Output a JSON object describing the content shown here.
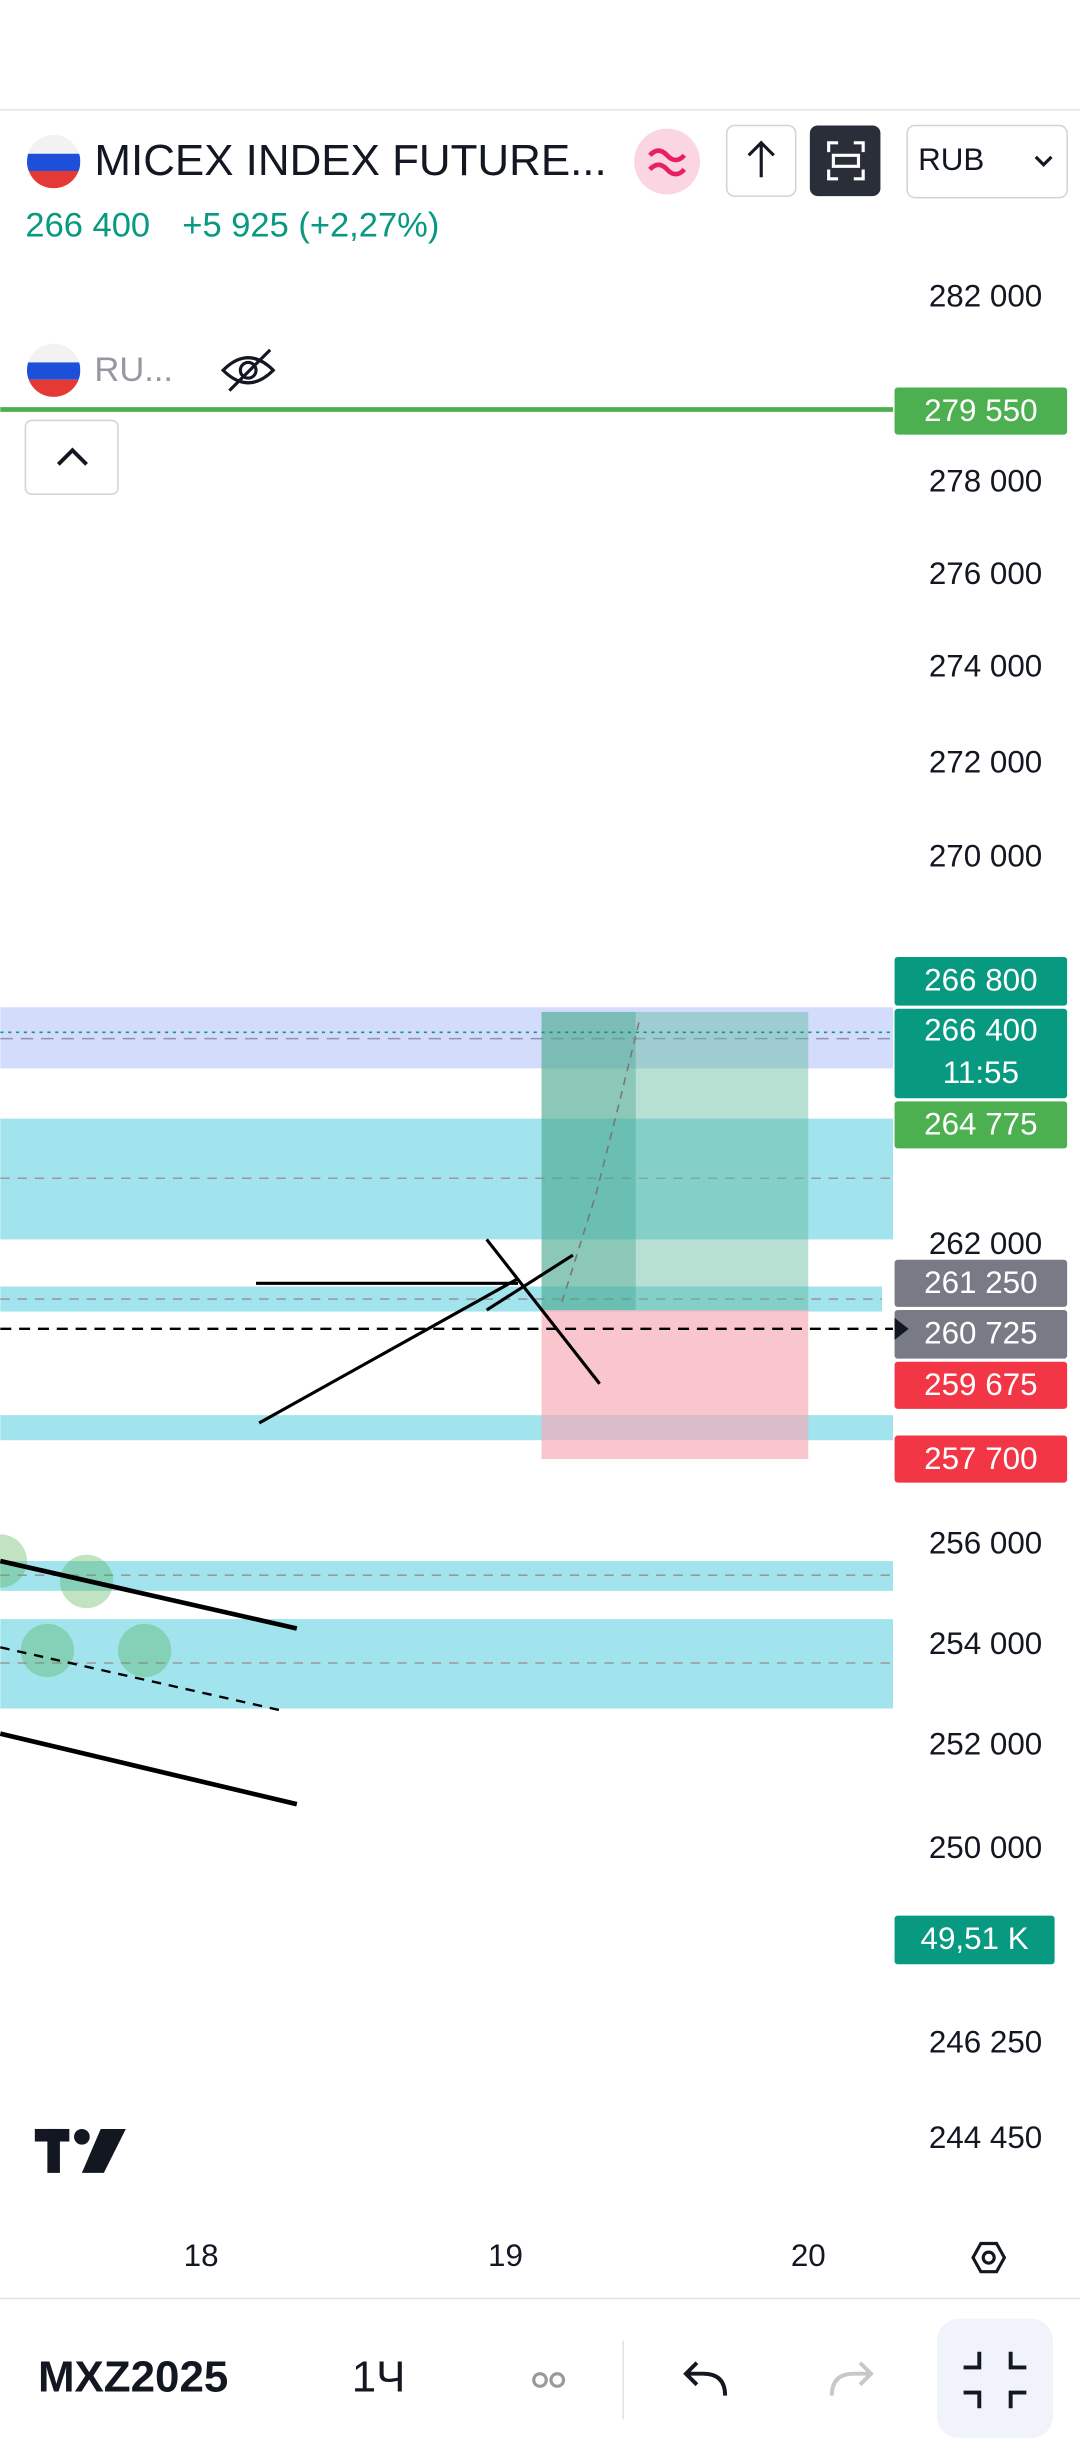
{
  "header": {
    "symbol": "MICEX INDEX FUTURE...",
    "price": "266 400",
    "change": "+5 925 (+2,27%)",
    "currency": "RUB"
  },
  "indicator": {
    "label": "RU..."
  },
  "price_axis": [
    "282 000",
    "278 000",
    "276 000",
    "274 000",
    "272 000",
    "270 000",
    "262 000",
    "256 000",
    "254 000",
    "252 000",
    "250 000",
    "246 250",
    "244 450"
  ],
  "price_tags": {
    "alert": "279 550",
    "high": "266 800",
    "last": "266 400",
    "countdown": "11:55",
    "target": "264 775",
    "level_1": "261 250",
    "level_2": "260 725",
    "level_3": "259 675",
    "stop": "257 700",
    "volume": "49,51 K"
  },
  "time_axis": [
    "18",
    "19",
    "20"
  ],
  "bottom_bar": {
    "symbol": "MXZ2025",
    "interval": "1Ч"
  }
}
